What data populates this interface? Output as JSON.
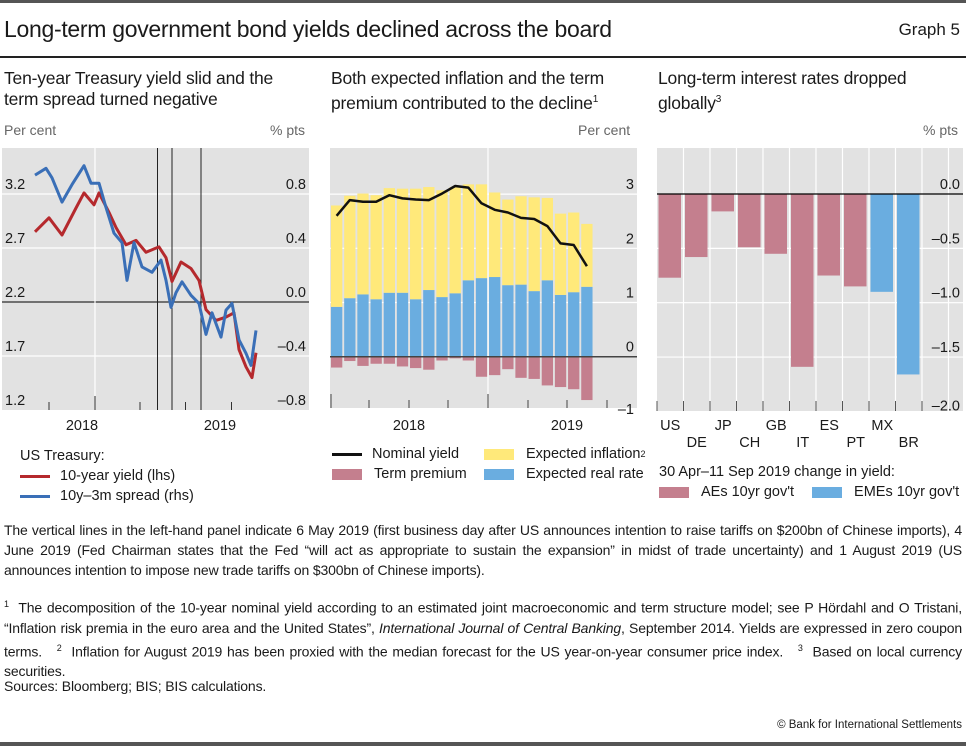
{
  "header": {
    "title": "Long-term government bond yields declined across the board",
    "graph_label": "Graph 5"
  },
  "panels": [
    {
      "title_line1": "Ten-year Treasury yield slid and the",
      "title_line2": "term spread turned negative",
      "unit_left": "Per cent",
      "unit_right": "% pts"
    },
    {
      "title_line1": "Both expected inflation and the term",
      "title_line2": "premium contributed to the decline",
      "title_sup": "1",
      "unit_right": "Per cent"
    },
    {
      "title_line1": "Long-term interest rates dropped",
      "title_line2": "globally",
      "title_sup": "3",
      "unit_right": "% pts"
    }
  ],
  "legends": {
    "left": {
      "heading": "US Treasury:",
      "items": [
        {
          "label": "10-year yield (lhs)",
          "color": "#b5292d"
        },
        {
          "label": "10y–3m spread (rhs)",
          "color": "#3a6fb7"
        }
      ]
    },
    "middle": {
      "items": [
        {
          "label": "Nominal yield",
          "color": "#111111",
          "kind": "line"
        },
        {
          "label": "Expected inflation",
          "sup": "2",
          "color": "#ffe97a",
          "kind": "box"
        },
        {
          "label": "Term premium",
          "color": "#c47f8e",
          "kind": "box"
        },
        {
          "label": "Expected real rate",
          "color": "#6aade0",
          "kind": "box"
        }
      ]
    },
    "right": {
      "heading": "30 Apr–11 Sep 2019 change in yield:",
      "items": [
        {
          "label": "AEs 10yr gov't",
          "color": "#c47f8e"
        },
        {
          "label": "EMEs 10yr gov't",
          "color": "#6aade0"
        }
      ]
    }
  },
  "notes": {
    "main": "The vertical lines in the left-hand panel indicate 6 May 2019 (first business day after US announces intention to raise tariffs on $200bn of Chinese imports), 4 June 2019 (Fed Chairman states that the Fed “will act as appropriate to sustain the expansion” in midst of trade uncertainty) and 1 August 2019 (US announces intention to impose new trade tariffs on $300bn of Chinese imports).",
    "fn1_num": "1",
    "fn1_a": "The decomposition of the 10-year nominal yield according to an estimated joint macroeconomic and term structure model; see P Hördahl and O Tristani, “Inflation risk premia in the euro area and the United States”, ",
    "fn1_journal": "International Journal of Central Banking",
    "fn1_b": ", September 2014. Yields are expressed in zero coupon terms.",
    "fn2_num": "2",
    "fn2": "Inflation for August 2019 has been proxied with the median forecast for the US year-on-year consumer price index.",
    "fn3_num": "3",
    "fn3": "Based on local currency securities.",
    "sources": "Sources: Bloomberg; BIS; BIS calculations."
  },
  "copyright": "© Bank for International Settlements",
  "chart_data": [
    {
      "type": "line",
      "title": "Ten-year Treasury yield slid and the term spread turned negative",
      "xlabel": "",
      "x_tick_labels": [
        "2018",
        "2019"
      ],
      "x_range_days": [
        0,
        620
      ],
      "x_year_2019_start_day": 186,
      "vertical_lines_days": [
        311,
        340,
        398
      ],
      "vertical_lines_labels": [
        "6 May 2019",
        "4 June 2019",
        "1 August 2019"
      ],
      "ylabel_left": "Per cent",
      "ylabel_right": "% pts",
      "ylim_left": [
        1.2,
        3.2
      ],
      "yticks_left": [
        1.2,
        1.7,
        2.2,
        2.7,
        3.2
      ],
      "ylim_right": [
        -0.8,
        0.8
      ],
      "yticks_right": [
        -0.8,
        -0.4,
        0.0,
        0.4,
        0.8
      ],
      "grid": true,
      "series": [
        {
          "name": "10-year yield (lhs)",
          "axis": "left",
          "color": "#b5292d",
          "x": [
            66,
            94,
            120,
            148,
            164,
            184,
            194,
            214,
            228,
            248,
            268,
            288,
            314,
            328,
            340,
            358,
            378,
            394,
            408,
            428,
            448,
            464,
            474,
            488,
            500,
            508
          ],
          "values": [
            2.85,
            2.98,
            2.82,
            3.07,
            3.21,
            3.1,
            3.21,
            3.03,
            2.89,
            2.73,
            2.77,
            2.66,
            2.71,
            2.61,
            2.39,
            2.57,
            2.51,
            2.4,
            2.13,
            2.03,
            2.06,
            2.1,
            1.76,
            1.6,
            1.5,
            1.73
          ]
        },
        {
          "name": "10y–3m spread (rhs)",
          "axis": "right",
          "color": "#3a6fb7",
          "x": [
            66,
            88,
            100,
            120,
            140,
            164,
            178,
            194,
            208,
            224,
            240,
            250,
            264,
            280,
            300,
            318,
            328,
            338,
            348,
            360,
            378,
            394,
            408,
            420,
            438,
            448,
            460,
            474,
            488,
            498,
            508
          ],
          "values": [
            0.94,
            0.99,
            0.92,
            0.74,
            0.87,
            1.01,
            0.88,
            0.88,
            0.7,
            0.51,
            0.44,
            0.16,
            0.44,
            0.26,
            0.22,
            0.31,
            0.16,
            -0.04,
            0.07,
            0.15,
            0.05,
            -0.01,
            -0.24,
            -0.08,
            -0.26,
            -0.06,
            -0.01,
            -0.28,
            -0.38,
            -0.47,
            -0.21
          ]
        }
      ]
    },
    {
      "type": "bar",
      "stacked": true,
      "title": "Both expected inflation and the term premium contributed to the decline",
      "x_tick_labels": [
        "2018",
        "2019"
      ],
      "ylabel": "Per cent",
      "ylim": [
        -1,
        3.5
      ],
      "yticks": [
        -1,
        0,
        1,
        2,
        3
      ],
      "grid": true,
      "categories": [
        "2018-01",
        "2018-02",
        "2018-03",
        "2018-04",
        "2018-05",
        "2018-06",
        "2018-07",
        "2018-08",
        "2018-09",
        "2018-10",
        "2018-11",
        "2018-12",
        "2019-01",
        "2019-02",
        "2019-03",
        "2019-04",
        "2019-05",
        "2019-06",
        "2019-07",
        "2019-08"
      ],
      "series": [
        {
          "name": "Expected real rate",
          "color": "#6aade0",
          "values": [
            0.92,
            1.08,
            1.15,
            1.06,
            1.18,
            1.18,
            1.06,
            1.23,
            1.1,
            1.17,
            1.41,
            1.45,
            1.47,
            1.32,
            1.33,
            1.21,
            1.41,
            1.14,
            1.19,
            1.29
          ]
        },
        {
          "name": "Expected inflation",
          "color": "#ffe97a",
          "values": [
            1.87,
            1.89,
            1.86,
            1.92,
            1.93,
            1.92,
            2.04,
            1.9,
            1.97,
            1.96,
            1.77,
            1.73,
            1.56,
            1.58,
            1.63,
            1.73,
            1.52,
            1.5,
            1.47,
            1.16
          ]
        },
        {
          "name": "Term premium",
          "color": "#c47f8e",
          "values": [
            -0.2,
            -0.08,
            -0.17,
            -0.13,
            -0.13,
            -0.18,
            -0.21,
            -0.24,
            -0.07,
            -0.03,
            -0.07,
            -0.37,
            -0.34,
            -0.23,
            -0.39,
            -0.41,
            -0.53,
            -0.56,
            -0.6,
            -0.8
          ]
        },
        {
          "name": "Nominal yield",
          "type": "line",
          "color": "#111111",
          "values": [
            2.6,
            2.89,
            2.86,
            2.86,
            2.98,
            2.92,
            2.9,
            2.89,
            3.01,
            3.15,
            3.12,
            2.83,
            2.71,
            2.66,
            2.56,
            2.54,
            2.41,
            2.09,
            2.06,
            1.67
          ]
        }
      ]
    },
    {
      "type": "bar",
      "title": "Long-term interest rates dropped globally",
      "ylabel": "% pts",
      "ylim": [
        -2.0,
        0.5
      ],
      "yticks": [
        -2.0,
        -1.5,
        -1.0,
        -0.5,
        0.0
      ],
      "grid": true,
      "categories": [
        "US",
        "DE",
        "JP",
        "CH",
        "GB",
        "IT",
        "ES",
        "PT",
        "MX",
        "BR"
      ],
      "values": [
        -0.77,
        -0.58,
        -0.16,
        -0.49,
        -0.55,
        -1.59,
        -0.75,
        -0.85,
        -0.9,
        -1.66
      ],
      "groups": [
        "AEs 10yr gov't",
        "AEs 10yr gov't",
        "AEs 10yr gov't",
        "AEs 10yr gov't",
        "AEs 10yr gov't",
        "AEs 10yr gov't",
        "AEs 10yr gov't",
        "AEs 10yr gov't",
        "EMEs 10yr gov't",
        "EMEs 10yr gov't"
      ],
      "group_colors": {
        "AEs 10yr gov't": "#c47f8e",
        "EMEs 10yr gov't": "#6aade0"
      }
    }
  ]
}
